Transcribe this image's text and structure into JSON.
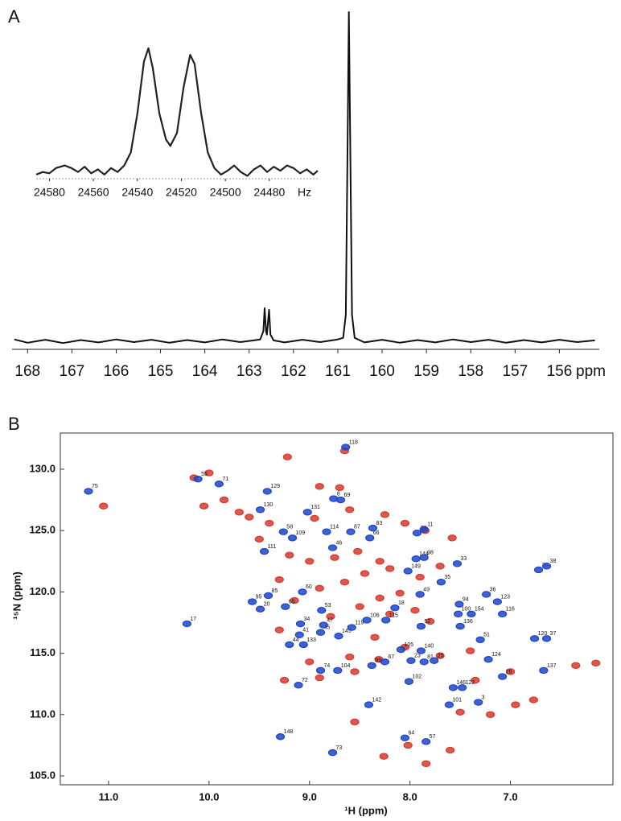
{
  "chart_data": [
    {
      "type": "line",
      "panel_label": "A",
      "x_unit_label": "ppm",
      "color": "#111111",
      "xlim": [
        168.35,
        155.1
      ],
      "ylim": [
        -0.03,
        1.0
      ],
      "xticks": [
        168,
        167,
        166,
        165,
        164,
        163,
        162,
        161,
        160,
        159,
        158,
        157,
        156
      ],
      "x": [
        168.3,
        168.0,
        167.6,
        167.2,
        166.8,
        166.4,
        166.0,
        165.6,
        165.2,
        164.8,
        164.4,
        164.0,
        163.6,
        163.2,
        162.9,
        162.75,
        162.68,
        162.65,
        162.62,
        162.6,
        162.55,
        162.52,
        162.45,
        162.2,
        161.8,
        161.4,
        161.0,
        160.88,
        160.82,
        160.78,
        160.75,
        160.72,
        160.68,
        160.62,
        160.4,
        160.0,
        159.6,
        159.2,
        158.8,
        158.4,
        158.0,
        157.6,
        157.2,
        156.8,
        156.4,
        156.0,
        155.6,
        155.2
      ],
      "values": [
        0.005,
        -0.005,
        0.004,
        -0.006,
        0.003,
        -0.004,
        0.005,
        -0.003,
        0.004,
        -0.005,
        0.003,
        -0.004,
        0.005,
        -0.003,
        0.002,
        0.005,
        0.03,
        0.1,
        0.03,
        0.02,
        0.095,
        0.02,
        0.002,
        -0.004,
        0.004,
        -0.003,
        0.005,
        0.01,
        0.08,
        0.6,
        1.0,
        0.6,
        0.08,
        0.01,
        -0.004,
        0.004,
        -0.005,
        0.003,
        -0.004,
        0.005,
        -0.003,
        0.004,
        -0.005,
        0.003,
        -0.004,
        0.004,
        -0.003,
        0.002
      ]
    },
    {
      "type": "line",
      "x_unit_label": "Hz",
      "color": "#222222",
      "xlim": [
        24586,
        24458
      ],
      "ylim": [
        -0.02,
        1.0
      ],
      "xticks": [
        24580,
        24560,
        24540,
        24520,
        24500,
        24480
      ],
      "x": [
        24586,
        24583,
        24580,
        24577,
        24573,
        24570,
        24567,
        24564,
        24561,
        24558,
        24555,
        24552,
        24549,
        24546,
        24543,
        24540,
        24537,
        24535,
        24533,
        24530,
        24527,
        24525,
        24522,
        24519,
        24516,
        24514,
        24511,
        24508,
        24505,
        24502,
        24499,
        24496,
        24493,
        24490,
        24487,
        24484,
        24481,
        24478,
        24475,
        24472,
        24469,
        24466,
        24463,
        24460,
        24458
      ],
      "values": [
        0.03,
        0.05,
        0.04,
        0.08,
        0.1,
        0.08,
        0.05,
        0.09,
        0.04,
        0.07,
        0.03,
        0.08,
        0.05,
        0.1,
        0.2,
        0.5,
        0.9,
        1.0,
        0.85,
        0.5,
        0.3,
        0.25,
        0.35,
        0.7,
        0.95,
        0.88,
        0.5,
        0.2,
        0.08,
        0.03,
        0.06,
        0.1,
        0.05,
        0.02,
        0.07,
        0.1,
        0.05,
        0.09,
        0.06,
        0.1,
        0.08,
        0.04,
        0.07,
        0.03,
        0.06
      ]
    },
    {
      "type": "scatter",
      "panel_label": "B",
      "xlabel": "¹H (ppm)",
      "ylabel": "¹⁵N (ppm)",
      "xlim": [
        11.48,
        5.98
      ],
      "ylim": [
        104.28,
        132.95
      ],
      "xticks": [
        {
          "value": 11,
          "label": "11.0"
        },
        {
          "value": 10,
          "label": "10.0"
        },
        {
          "value": 9,
          "label": "9.0"
        },
        {
          "value": 8,
          "label": "8.0"
        },
        {
          "value": 7,
          "label": "7.0"
        }
      ],
      "yticks": [
        {
          "value": 105,
          "label": "105.0"
        },
        {
          "value": 110,
          "label": "110.0"
        },
        {
          "value": 115,
          "label": "115.0"
        },
        {
          "value": 120,
          "label": "120.0"
        },
        {
          "value": 125,
          "label": "125.0"
        },
        {
          "value": 130,
          "label": "130.0"
        }
      ],
      "series": [
        {
          "color": "#d63a2f",
          "x": [
            8.26,
            7.84,
            7.6,
            8.55,
            8.02,
            7.2,
            6.95,
            6.77,
            7.35,
            6.35,
            7.0,
            9.25,
            8.9,
            8.55,
            8.6,
            8.31,
            8.05,
            7.7,
            7.4,
            9.0,
            9.3,
            8.79,
            8.5,
            8.3,
            8.1,
            8.2,
            7.95,
            8.35,
            7.8,
            9.15,
            9.3,
            8.9,
            8.65,
            8.45,
            8.2,
            7.9,
            7.7,
            9.0,
            8.75,
            8.52,
            9.2,
            8.3,
            9.5,
            9.6,
            9.7,
            9.4,
            8.95,
            8.6,
            8.9,
            8.7,
            8.25,
            7.85,
            7.58,
            10.05,
            9.85,
            11.05,
            10.15,
            10.0,
            9.22,
            8.65,
            6.15,
            8.05,
            7.5
          ],
          "values": [
            106.6,
            106.0,
            107.1,
            109.4,
            107.5,
            110.0,
            110.8,
            111.2,
            112.8,
            114.0,
            113.5,
            112.8,
            113.0,
            113.5,
            114.7,
            114.5,
            115.5,
            114.8,
            115.2,
            114.3,
            116.9,
            118.0,
            118.8,
            119.5,
            119.9,
            118.2,
            118.5,
            116.3,
            117.6,
            119.3,
            121.0,
            120.3,
            120.8,
            121.5,
            121.9,
            121.2,
            122.1,
            122.5,
            122.8,
            123.3,
            123.0,
            122.5,
            124.3,
            126.1,
            126.5,
            125.6,
            126.0,
            126.7,
            128.6,
            128.5,
            126.3,
            125.0,
            124.4,
            127.0,
            127.5,
            127.0,
            129.3,
            129.7,
            131.0,
            131.5,
            114.2,
            125.6,
            110.2
          ]
        },
        {
          "color": "#1f45c8",
          "labels": [
            "73",
            "148",
            "64",
            "57",
            "142",
            "101",
            "3",
            "72",
            "146",
            "122",
            "102",
            "26",
            "74",
            "104",
            "99",
            "67",
            "137",
            "23",
            "81",
            "25",
            "124",
            "133",
            "44",
            "140",
            "145",
            "105",
            "41",
            "119",
            "45",
            "47",
            "51",
            "120",
            "37",
            "106",
            "115",
            "52",
            "17",
            "20",
            "95",
            "85",
            "65",
            "100",
            "94",
            "136",
            "154",
            "116",
            "123",
            "36",
            "34",
            "53",
            "60",
            "18",
            "49",
            "35",
            "33",
            "149",
            "144",
            "98",
            "30",
            "38",
            "111",
            "46",
            "109",
            "58",
            "114",
            "87",
            "66",
            "83",
            "76",
            "11",
            "130",
            "131",
            "8",
            "69",
            "129",
            "75",
            "71",
            "55",
            "118"
          ],
          "x": [
            8.77,
            9.29,
            8.05,
            7.84,
            8.41,
            7.61,
            7.32,
            9.11,
            7.57,
            7.48,
            8.01,
            7.08,
            8.89,
            8.72,
            8.38,
            8.25,
            6.67,
            7.99,
            7.86,
            7.76,
            7.22,
            9.06,
            9.2,
            7.89,
            8.71,
            8.09,
            9.1,
            8.58,
            8.89,
            8.86,
            7.3,
            6.76,
            6.64,
            8.43,
            8.24,
            7.89,
            10.22,
            9.49,
            9.57,
            9.41,
            9.24,
            7.52,
            7.51,
            7.5,
            7.39,
            7.08,
            7.13,
            7.24,
            9.09,
            8.88,
            9.07,
            8.15,
            7.9,
            7.69,
            7.53,
            8.02,
            7.94,
            7.86,
            6.72,
            6.64,
            9.45,
            8.77,
            9.17,
            9.26,
            8.83,
            8.59,
            8.4,
            8.37,
            7.93,
            7.86,
            9.49,
            9.02,
            8.76,
            8.69,
            9.42,
            11.2,
            9.9,
            10.11,
            8.64
          ],
          "values": [
            106.9,
            108.2,
            108.1,
            107.8,
            110.8,
            110.8,
            111.0,
            112.4,
            112.2,
            112.2,
            112.7,
            113.1,
            113.6,
            113.6,
            114.0,
            114.3,
            113.6,
            114.4,
            114.3,
            114.4,
            114.5,
            115.7,
            115.7,
            115.2,
            116.4,
            115.3,
            116.5,
            117.1,
            116.7,
            117.3,
            116.1,
            116.2,
            116.2,
            117.7,
            117.7,
            117.2,
            117.4,
            118.6,
            119.2,
            119.7,
            118.8,
            118.2,
            119.0,
            117.2,
            118.2,
            118.2,
            119.2,
            119.8,
            117.4,
            118.5,
            120.0,
            118.7,
            119.8,
            120.8,
            122.3,
            121.7,
            122.7,
            122.8,
            121.8,
            122.1,
            123.3,
            123.6,
            124.4,
            124.9,
            124.9,
            124.9,
            124.4,
            125.2,
            124.8,
            125.1,
            126.7,
            126.5,
            127.6,
            127.5,
            128.2,
            128.2,
            128.8,
            129.2,
            131.8
          ]
        }
      ]
    }
  ]
}
